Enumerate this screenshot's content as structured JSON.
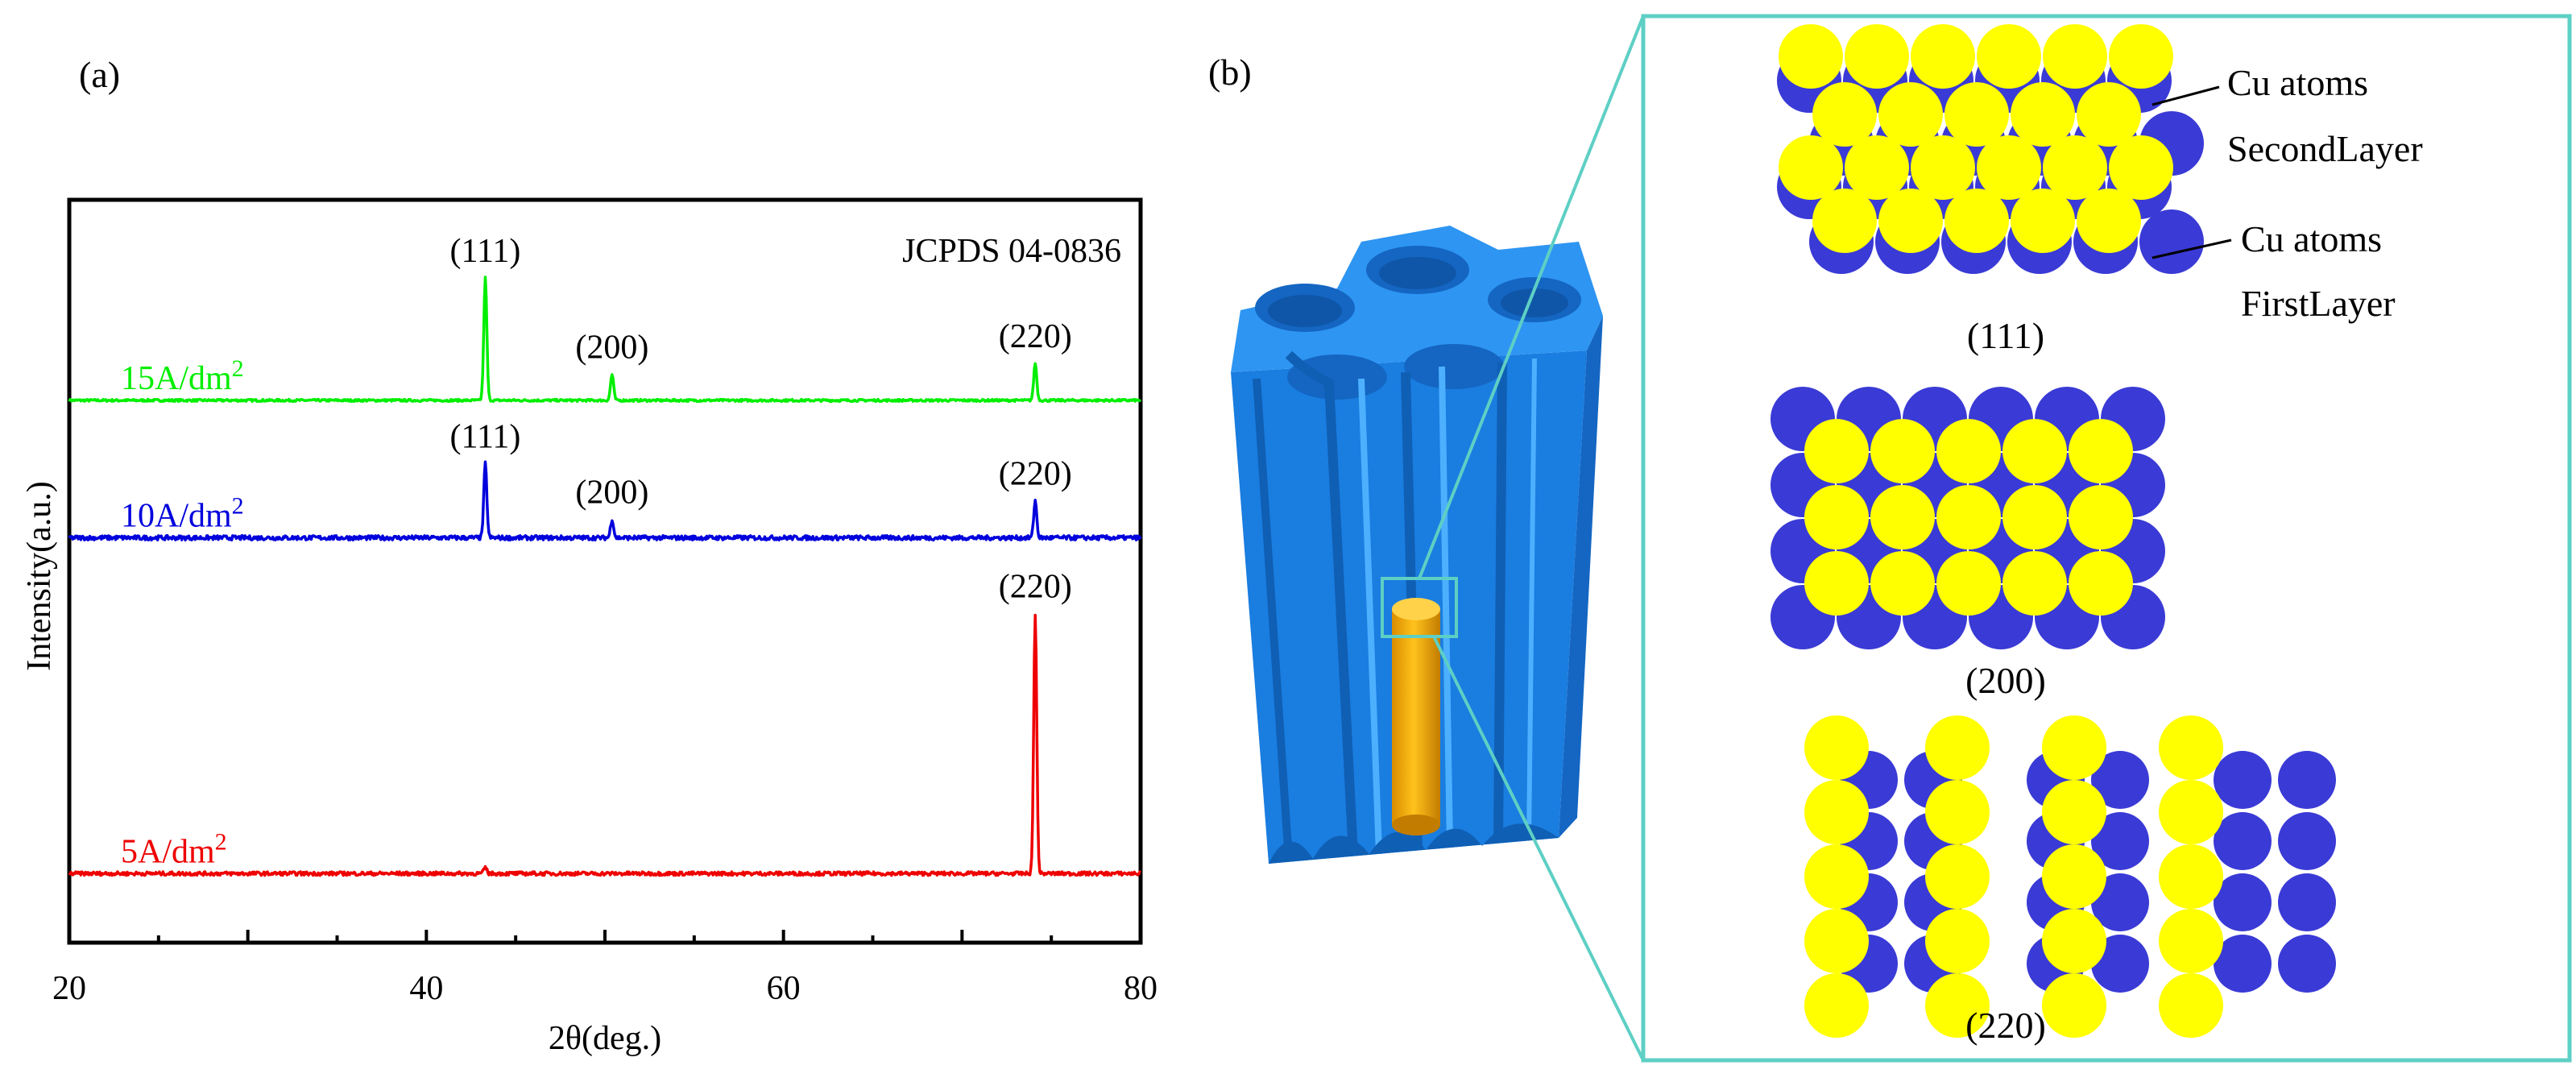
{
  "panel_a": {
    "label": "(a)"
  },
  "panel_b": {
    "label": "(b)"
  },
  "chart_data": {
    "type": "line",
    "title": "",
    "annotation": "JCPDS 04-0836",
    "xlabel": "2θ(deg.)",
    "ylabel": "Intensity(a.u.)",
    "xlim": [
      20,
      80
    ],
    "ylim": [
      0,
      100
    ],
    "xticks": [
      20,
      40,
      60,
      80
    ],
    "tick_labels": [
      "20",
      "40",
      "60",
      "80"
    ],
    "series": [
      {
        "name": "15A/dm²",
        "label_main": "15A/dm",
        "label_sup": "2",
        "color": "#00ee00",
        "baseline": 73,
        "noise": 0.15,
        "peaks": [
          {
            "x": 43.3,
            "height": 16.5,
            "label": "(111)"
          },
          {
            "x": 50.4,
            "height": 3.5,
            "label": "(200)"
          },
          {
            "x": 74.1,
            "height": 5,
            "label": "(220)"
          }
        ]
      },
      {
        "name": "10A/dm²",
        "label_main": "10A/dm",
        "label_sup": "2",
        "color": "#0000dd",
        "baseline": 54.5,
        "noise": 0.3,
        "peaks": [
          {
            "x": 43.3,
            "height": 10,
            "label": "(111)"
          },
          {
            "x": 50.4,
            "height": 2.5,
            "label": "(200)"
          },
          {
            "x": 74.1,
            "height": 5,
            "label": "(220)"
          }
        ]
      },
      {
        "name": "5A/dm²",
        "label_main": "5A/dm",
        "label_sup": "2",
        "color": "#ee0000",
        "baseline": 9.3,
        "noise": 0.25,
        "peaks": [
          {
            "x": 43.3,
            "height": 0.8,
            "label": ""
          },
          {
            "x": 74.1,
            "height": 35,
            "label": "(220)"
          }
        ]
      }
    ]
  },
  "schematic": {
    "layer_labels": {
      "second_line1": "Cu atoms",
      "second_line2": "SecondLayer",
      "first_line1": "Cu atoms",
      "first_line2": "FirstLayer"
    },
    "planes": [
      "(111)",
      "(200)",
      "(220)"
    ],
    "colors": {
      "template": "#1f86e8",
      "template_top": "#2e95f2",
      "wire": "#f4b212",
      "zoom_frame": "#5ecfc4",
      "atom_top": "#ffff00",
      "atom_bottom": "#3a3ad6"
    }
  }
}
